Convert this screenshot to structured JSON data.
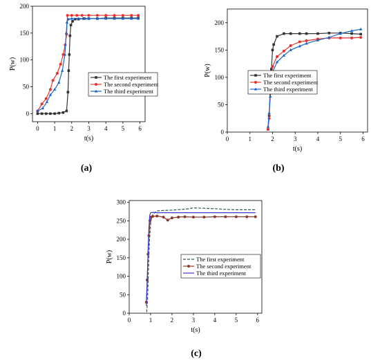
{
  "chart_data": [
    {
      "type": "line",
      "panel_label": "(a)",
      "xlabel": "t(s)",
      "ylabel": "P(w)",
      "xlim": [
        -0.3,
        6.3
      ],
      "ylim": [
        -15,
        200
      ],
      "xticks": [
        0,
        1,
        2,
        3,
        4,
        5,
        6
      ],
      "yticks": [
        0,
        50,
        100,
        150,
        200
      ],
      "legend_position": "right-middle",
      "series": [
        {
          "name": "The first experiment",
          "color": "#333333",
          "marker": "square",
          "points": [
            [
              0,
              0
            ],
            [
              0.25,
              0
            ],
            [
              0.5,
              0
            ],
            [
              0.75,
              0
            ],
            [
              1.0,
              0
            ],
            [
              1.25,
              1
            ],
            [
              1.5,
              2
            ],
            [
              1.7,
              5
            ],
            [
              1.78,
              40
            ],
            [
              1.82,
              80
            ],
            [
              1.86,
              110
            ],
            [
              1.9,
              145
            ],
            [
              1.95,
              165
            ],
            [
              2.05,
              172
            ],
            [
              2.2,
              176
            ],
            [
              2.4,
              176
            ],
            [
              2.7,
              177
            ],
            [
              3.0,
              177
            ],
            [
              3.5,
              177
            ],
            [
              4.0,
              178
            ],
            [
              4.5,
              178
            ],
            [
              5.0,
              178
            ],
            [
              5.5,
              178
            ],
            [
              5.9,
              178
            ]
          ]
        },
        {
          "name": "The second experiment",
          "color": "#e8312f",
          "marker": "circle",
          "points": [
            [
              0,
              5
            ],
            [
              0.25,
              18
            ],
            [
              0.5,
              28
            ],
            [
              0.75,
              45
            ],
            [
              0.9,
              62
            ],
            [
              1.15,
              75
            ],
            [
              1.35,
              92
            ],
            [
              1.5,
              110
            ],
            [
              1.62,
              128
            ],
            [
              1.7,
              148
            ],
            [
              1.75,
              183
            ],
            [
              2.0,
              183
            ],
            [
              2.3,
              183
            ],
            [
              2.6,
              183
            ],
            [
              3.0,
              183
            ],
            [
              3.5,
              183
            ],
            [
              4.0,
              183
            ],
            [
              4.5,
              183
            ],
            [
              5.0,
              183
            ],
            [
              5.5,
              183
            ],
            [
              5.9,
              183
            ]
          ]
        },
        {
          "name": "The third experiment",
          "color": "#1a64c8",
          "marker": "triangle",
          "points": [
            [
              0,
              5
            ],
            [
              0.3,
              10
            ],
            [
              0.55,
              22
            ],
            [
              0.75,
              35
            ],
            [
              1.0,
              45
            ],
            [
              1.25,
              58
            ],
            [
              1.45,
              80
            ],
            [
              1.6,
              110
            ],
            [
              1.68,
              150
            ],
            [
              1.72,
              170
            ],
            [
              1.8,
              176
            ],
            [
              2.0,
              177
            ],
            [
              2.4,
              177
            ],
            [
              2.8,
              177
            ],
            [
              3.0,
              177
            ],
            [
              3.5,
              177
            ],
            [
              4.0,
              177
            ],
            [
              4.5,
              177
            ],
            [
              5.0,
              177
            ],
            [
              5.5,
              177
            ],
            [
              5.9,
              177
            ]
          ]
        }
      ]
    },
    {
      "type": "line",
      "panel_label": "(b)",
      "xlabel": "t(s)",
      "ylabel": "P(w)",
      "xlim": [
        0,
        6.2
      ],
      "ylim": [
        0,
        225
      ],
      "xticks": [
        0,
        1,
        2,
        3,
        4,
        5,
        6
      ],
      "yticks": [
        0,
        50,
        100,
        150,
        200
      ],
      "legend_position": "right-middle",
      "series": [
        {
          "name": "The first experiment",
          "color": "#333333",
          "marker": "square",
          "points": [
            [
              1.8,
              5
            ],
            [
              1.85,
              30
            ],
            [
              1.9,
              85
            ],
            [
              1.95,
              115
            ],
            [
              2.0,
              150
            ],
            [
              2.05,
              160
            ],
            [
              2.2,
              175
            ],
            [
              2.5,
              180
            ],
            [
              2.8,
              180
            ],
            [
              3.2,
              180
            ],
            [
              3.5,
              180
            ],
            [
              4.0,
              180
            ],
            [
              4.5,
              181
            ],
            [
              5.0,
              181
            ],
            [
              5.5,
              180
            ],
            [
              5.9,
              179
            ]
          ]
        },
        {
          "name": "The second experiment",
          "color": "#e8312f",
          "marker": "circle",
          "points": [
            [
              1.8,
              5
            ],
            [
              1.85,
              25
            ],
            [
              1.9,
              75
            ],
            [
              1.95,
              100
            ],
            [
              2.0,
              120
            ],
            [
              2.2,
              138
            ],
            [
              2.5,
              148
            ],
            [
              2.8,
              158
            ],
            [
              3.2,
              165
            ],
            [
              3.5,
              167
            ],
            [
              4.0,
              170
            ],
            [
              4.5,
              172
            ],
            [
              5.0,
              172
            ],
            [
              5.5,
              172
            ],
            [
              5.9,
              173
            ]
          ]
        },
        {
          "name": "The third experiment",
          "color": "#1a64c8",
          "marker": "triangle",
          "points": [
            [
              1.8,
              10
            ],
            [
              1.85,
              35
            ],
            [
              1.9,
              65
            ],
            [
              1.95,
              90
            ],
            [
              2.0,
              110
            ],
            [
              2.2,
              128
            ],
            [
              2.5,
              140
            ],
            [
              2.8,
              150
            ],
            [
              3.2,
              157
            ],
            [
              3.5,
              162
            ],
            [
              4.0,
              168
            ],
            [
              4.5,
              173
            ],
            [
              5.0,
              180
            ],
            [
              5.5,
              185
            ],
            [
              5.9,
              188
            ]
          ]
        }
      ]
    },
    {
      "type": "line",
      "panel_label": "(c)",
      "xlabel": "t(s)",
      "ylabel": "P(w)",
      "xlim": [
        0,
        6.2
      ],
      "ylim": [
        0,
        305
      ],
      "xticks": [
        0,
        1,
        2,
        3,
        4,
        5,
        6
      ],
      "yticks": [
        0,
        50,
        100,
        150,
        200,
        250,
        300
      ],
      "legend_position": "right-middle",
      "series": [
        {
          "name": "The first experiment",
          "color": "#2e5c3e",
          "marker": "none",
          "dashed": true,
          "points": [
            [
              0.82,
              3
            ],
            [
              0.86,
              40
            ],
            [
              0.9,
              120
            ],
            [
              0.95,
              200
            ],
            [
              1.0,
              240
            ],
            [
              1.05,
              262
            ],
            [
              1.15,
              270
            ],
            [
              1.3,
              277
            ],
            [
              1.6,
              278
            ],
            [
              2.0,
              279
            ],
            [
              2.5,
              281
            ],
            [
              2.8,
              283
            ],
            [
              3.0,
              285
            ],
            [
              3.5,
              284
            ],
            [
              4.0,
              283
            ],
            [
              4.5,
              281
            ],
            [
              5.0,
              280
            ],
            [
              5.5,
              280
            ],
            [
              5.9,
              280
            ]
          ]
        },
        {
          "name": "The second experiment",
          "color": "#8b3a2a",
          "marker": "circle",
          "points": [
            [
              0.8,
              30
            ],
            [
              0.84,
              90
            ],
            [
              0.88,
              160
            ],
            [
              0.92,
              210
            ],
            [
              0.97,
              250
            ],
            [
              1.02,
              260
            ],
            [
              1.1,
              262
            ],
            [
              1.3,
              263
            ],
            [
              1.6,
              260
            ],
            [
              1.8,
              252
            ],
            [
              2.0,
              258
            ],
            [
              2.3,
              260
            ],
            [
              2.6,
              261
            ],
            [
              3.0,
              260
            ],
            [
              3.5,
              260
            ],
            [
              4.0,
              261
            ],
            [
              4.5,
              261
            ],
            [
              5.0,
              261
            ],
            [
              5.5,
              261
            ],
            [
              5.9,
              261
            ]
          ]
        },
        {
          "name": "The third experiment",
          "color": "#3a3ad0",
          "marker": "none",
          "points": [
            [
              0.8,
              20
            ],
            [
              0.84,
              80
            ],
            [
              0.88,
              170
            ],
            [
              0.92,
              230
            ],
            [
              0.96,
              265
            ],
            [
              1.0,
              272
            ],
            [
              1.1,
              273
            ],
            [
              1.3,
              272
            ],
            [
              1.6,
              272
            ],
            [
              2.0,
              272
            ],
            [
              2.5,
              272
            ],
            [
              3.0,
              272
            ],
            [
              3.5,
              272
            ],
            [
              4.0,
              272
            ],
            [
              4.5,
              272
            ],
            [
              5.0,
              272
            ],
            [
              5.5,
              272
            ],
            [
              5.9,
              272
            ]
          ]
        }
      ]
    }
  ]
}
